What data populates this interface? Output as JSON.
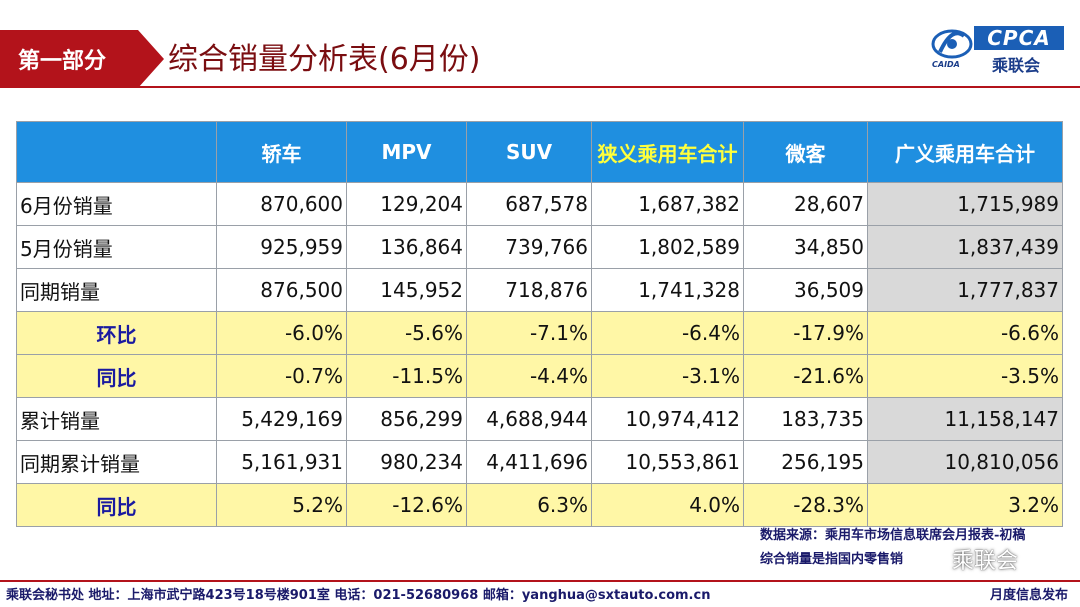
{
  "header": {
    "section_label": "第一部分",
    "title": "综合销量分析表(6月份)"
  },
  "logo": {
    "emblem_text": "CAIDA",
    "brand": "CPCA",
    "name_cn": "乘联会"
  },
  "table": {
    "columns": [
      "",
      "轿车",
      "MPV",
      "SUV",
      "狭义乘用车合计",
      "微客",
      "广义乘用车合计"
    ],
    "highlight_column_color": "#ffff3c",
    "rows": [
      {
        "label": "6月份销量",
        "cells": [
          "870,600",
          "129,204",
          "687,578",
          "1,687,382",
          "28,607",
          "1,715,989"
        ],
        "style": "normal"
      },
      {
        "label": "5月份销量",
        "cells": [
          "925,959",
          "136,864",
          "739,766",
          "1,802,589",
          "34,850",
          "1,837,439"
        ],
        "style": "normal"
      },
      {
        "label": "同期销量",
        "cells": [
          "876,500",
          "145,952",
          "718,876",
          "1,741,328",
          "36,509",
          "1,777,837"
        ],
        "style": "normal"
      },
      {
        "label": "环比",
        "cells": [
          "-6.0%",
          "-5.6%",
          "-7.1%",
          "-6.4%",
          "-17.9%",
          "-6.6%"
        ],
        "style": "yellow"
      },
      {
        "label": "同比",
        "cells": [
          "-0.7%",
          "-11.5%",
          "-4.4%",
          "-3.1%",
          "-21.6%",
          "-3.5%"
        ],
        "style": "yellow"
      },
      {
        "label": "累计销量",
        "cells": [
          "5,429,169",
          "856,299",
          "4,688,944",
          "10,974,412",
          "183,735",
          "11,158,147"
        ],
        "style": "normal"
      },
      {
        "label": "同期累计销量",
        "cells": [
          "5,161,931",
          "980,234",
          "4,411,696",
          "10,553,861",
          "256,195",
          "10,810,056"
        ],
        "style": "normal"
      },
      {
        "label": "同比",
        "cells": [
          "5.2%",
          "-12.6%",
          "6.3%",
          "4.0%",
          "-28.3%",
          "3.2%"
        ],
        "style": "yellow"
      }
    ]
  },
  "notes": {
    "source": "数据来源：乘用车市场信息联席会月报表-初稿",
    "definition": "综合销量是指国内零售销",
    "watermark": "乘联会"
  },
  "footer": {
    "left": "乘联会秘书处   地址：上海市武宁路423号18号楼901室  电话：021-52680968   邮箱：yanghua@sxtauto.com.cn",
    "right": "月度信息发布"
  },
  "colors": {
    "brand_red": "#b3131b",
    "header_blue": "#1f8fe0",
    "yellow_row": "#fff7a6",
    "grey_cell": "#d9d9d9"
  }
}
